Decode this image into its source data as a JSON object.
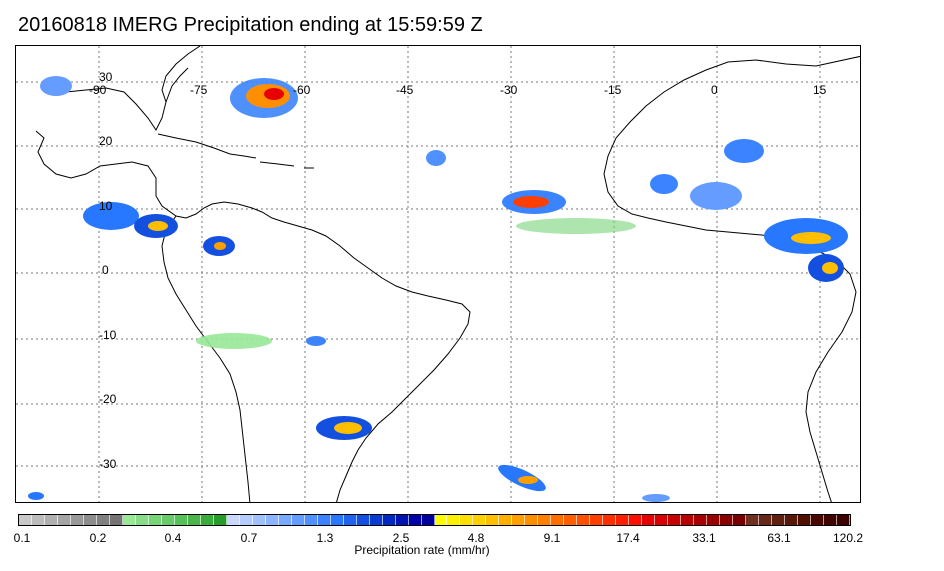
{
  "title": "20160818 IMERG Precipitation ending at 15:59:59 Z",
  "map": {
    "lon_labels": [
      "-90",
      "-75",
      "-60",
      "-45",
      "-30",
      "-15",
      "0",
      "15"
    ],
    "lat_labels": [
      "30",
      "20",
      "10",
      "0",
      "-10",
      "-20",
      "-30"
    ]
  },
  "colorbar": {
    "label": "Precipitation rate (mm/hr)",
    "ticks": [
      "0.1",
      "0.2",
      "0.4",
      "0.7",
      "1.3",
      "2.5",
      "4.8",
      "9.1",
      "17.4",
      "33.1",
      "63.1",
      "120.2"
    ],
    "colors": [
      "#c8c8c8",
      "#bcbcbc",
      "#b0b0b0",
      "#a4a4a4",
      "#989898",
      "#8c8c8c",
      "#808080",
      "#747474",
      "#98e898",
      "#88de88",
      "#78d478",
      "#68ca68",
      "#58c058",
      "#48b648",
      "#38ac38",
      "#289c28",
      "#c8d8ff",
      "#b4ccff",
      "#a0c0ff",
      "#8cb4ff",
      "#78a8ff",
      "#649cff",
      "#5090ff",
      "#3c84ff",
      "#2878ff",
      "#1e64f0",
      "#1450e0",
      "#0a3cd0",
      "#0028c0",
      "#0014b0",
      "#0000a8",
      "#00009c",
      "#ffff00",
      "#ffef00",
      "#ffdf00",
      "#ffcf00",
      "#ffbf00",
      "#ffaf00",
      "#ff9f00",
      "#ff8f00",
      "#ff7f00",
      "#ff6f00",
      "#ff5f00",
      "#ff4f00",
      "#ff3f00",
      "#ff2f00",
      "#ff1f00",
      "#ff0f00",
      "#e80000",
      "#d80000",
      "#c80000",
      "#b80000",
      "#a80000",
      "#980000",
      "#880000",
      "#780000",
      "#703020",
      "#682818",
      "#602010",
      "#581808",
      "#501000",
      "#480800",
      "#400400",
      "#3c0000"
    ]
  }
}
